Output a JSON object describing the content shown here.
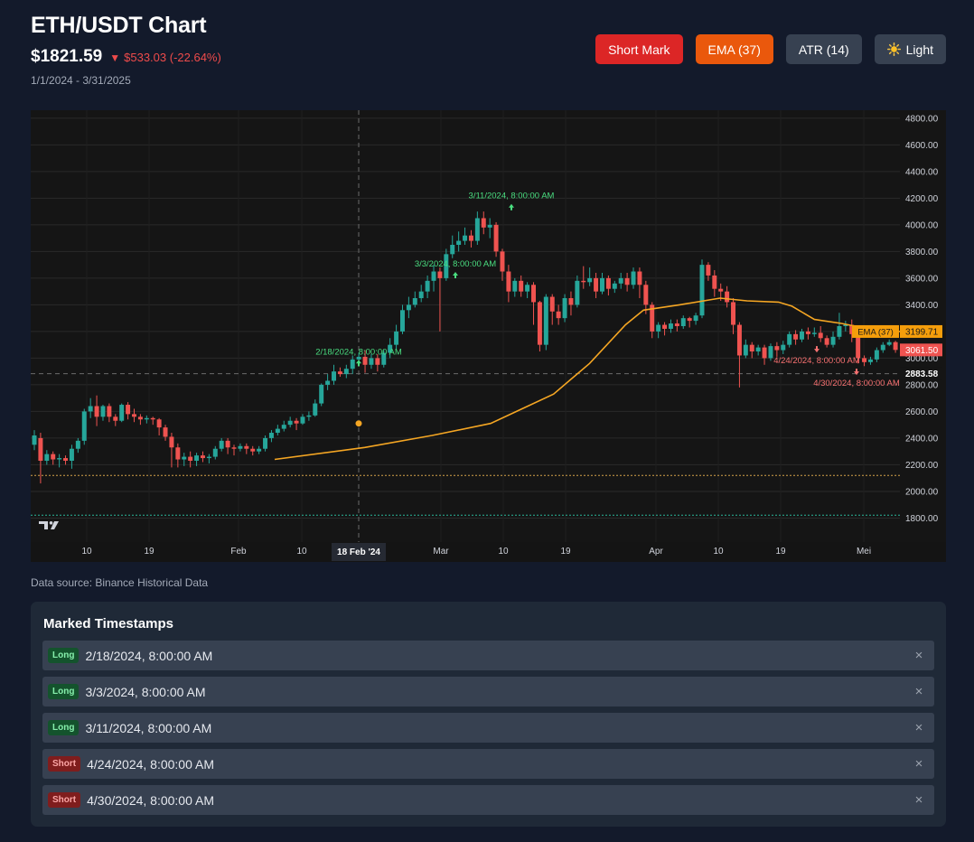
{
  "header": {
    "title": "ETH/USDT Chart",
    "price": "$1821.59",
    "change_arrow": "▼",
    "change": "$533.03 (-22.64%)",
    "date_range": "1/1/2024 - 3/31/2025"
  },
  "toolbar": {
    "short_mark_label": "Short Mark",
    "ema_label": "EMA (37)",
    "atr_label": "ATR (14)",
    "light_icon": "sun-icon",
    "light_label": "Light"
  },
  "colors": {
    "up": "#26a69a",
    "down": "#ef5350",
    "ema": "#f5a623",
    "background": "#131a2b"
  },
  "chart_data": {
    "type": "candlestick",
    "y_ticks": [
      "4800.00",
      "4600.00",
      "4400.00",
      "4200.00",
      "4000.00",
      "3800.00",
      "3600.00",
      "3400.00",
      "3200.00",
      "3000.00",
      "2800.00",
      "2600.00",
      "2400.00",
      "2200.00",
      "2000.00",
      "1800.00"
    ],
    "ylim": [
      1620,
      4860
    ],
    "x_ticks": [
      "10",
      "19",
      "Feb",
      "10",
      "Mar",
      "10",
      "19",
      "Apr",
      "10",
      "19",
      "Mei"
    ],
    "crosshair_label": "18 Feb '24",
    "crosshair_price": "2883.58",
    "ema_tag": "EMA (37)",
    "ema_value": "3199.71",
    "last_price": "3061.50",
    "ema_marker_value": 2510,
    "horizontal_lines": [
      {
        "value": 2883.58,
        "style": "dashed-gray"
      },
      {
        "value": 2120,
        "style": "dotted-orange"
      },
      {
        "value": 1821.59,
        "style": "dotted-green"
      }
    ],
    "marks": [
      {
        "type": "long",
        "label": "2/18/2024, 8:00:00 AM",
        "price": 2960
      },
      {
        "type": "long",
        "label": "3/3/2024, 8:00:00 AM",
        "price": 3620
      },
      {
        "type": "long",
        "label": "3/11/2024, 8:00:00 AM",
        "price": 4130
      },
      {
        "type": "short",
        "label": "4/24/2024, 8:00:00 AM",
        "price": 3070
      },
      {
        "type": "short",
        "label": "4/30/2024, 8:00:00 AM",
        "price": 2900
      }
    ],
    "ema": [
      {
        "day": 0,
        "v": 2240
      },
      {
        "day": 20,
        "v": 2330
      },
      {
        "day": 35,
        "v": 2420
      },
      {
        "day": 48,
        "v": 2510
      },
      {
        "day": 55,
        "v": 2620
      },
      {
        "day": 62,
        "v": 2730
      },
      {
        "day": 70,
        "v": 2960
      },
      {
        "day": 78,
        "v": 3250
      },
      {
        "day": 82,
        "v": 3360
      },
      {
        "day": 90,
        "v": 3400
      },
      {
        "day": 99,
        "v": 3450
      },
      {
        "day": 105,
        "v": 3430
      },
      {
        "day": 112,
        "v": 3420
      },
      {
        "day": 115,
        "v": 3390
      },
      {
        "day": 120,
        "v": 3290
      },
      {
        "day": 126,
        "v": 3260
      },
      {
        "day": 132,
        "v": 3220
      },
      {
        "day": 139,
        "v": 3199.71
      }
    ],
    "candles": [
      [
        2350,
        2420,
        2310,
        2460
      ],
      [
        2400,
        2230,
        2060,
        2440
      ],
      [
        2230,
        2280,
        2200,
        2310
      ],
      [
        2280,
        2240,
        2200,
        2300
      ],
      [
        2240,
        2250,
        2180,
        2280
      ],
      [
        2250,
        2230,
        2200,
        2270
      ],
      [
        2230,
        2320,
        2170,
        2350
      ],
      [
        2320,
        2380,
        2290,
        2400
      ],
      [
        2380,
        2600,
        2350,
        2620
      ],
      [
        2600,
        2640,
        2550,
        2700
      ],
      [
        2640,
        2560,
        2490,
        2720
      ],
      [
        2560,
        2640,
        2530,
        2650
      ],
      [
        2640,
        2560,
        2520,
        2660
      ],
      [
        2560,
        2530,
        2490,
        2580
      ],
      [
        2530,
        2650,
        2520,
        2660
      ],
      [
        2650,
        2580,
        2540,
        2670
      ],
      [
        2580,
        2560,
        2520,
        2620
      ],
      [
        2560,
        2540,
        2500,
        2580
      ],
      [
        2540,
        2550,
        2510,
        2570
      ],
      [
        2550,
        2540,
        2500,
        2560
      ],
      [
        2540,
        2480,
        2420,
        2550
      ],
      [
        2480,
        2410,
        2380,
        2500
      ],
      [
        2410,
        2330,
        2180,
        2440
      ],
      [
        2330,
        2240,
        2180,
        2360
      ],
      [
        2240,
        2260,
        2190,
        2290
      ],
      [
        2260,
        2230,
        2180,
        2300
      ],
      [
        2230,
        2270,
        2190,
        2290
      ],
      [
        2270,
        2250,
        2220,
        2300
      ],
      [
        2250,
        2260,
        2210,
        2280
      ],
      [
        2260,
        2320,
        2240,
        2340
      ],
      [
        2320,
        2380,
        2300,
        2400
      ],
      [
        2380,
        2330,
        2280,
        2400
      ],
      [
        2330,
        2320,
        2270,
        2350
      ],
      [
        2320,
        2340,
        2300,
        2360
      ],
      [
        2340,
        2320,
        2280,
        2360
      ],
      [
        2320,
        2300,
        2270,
        2340
      ],
      [
        2300,
        2320,
        2280,
        2340
      ],
      [
        2320,
        2400,
        2300,
        2420
      ],
      [
        2400,
        2440,
        2370,
        2460
      ],
      [
        2440,
        2470,
        2420,
        2500
      ],
      [
        2470,
        2500,
        2450,
        2530
      ],
      [
        2500,
        2530,
        2480,
        2560
      ],
      [
        2530,
        2510,
        2460,
        2550
      ],
      [
        2510,
        2560,
        2500,
        2580
      ],
      [
        2560,
        2570,
        2530,
        2600
      ],
      [
        2570,
        2660,
        2560,
        2690
      ],
      [
        2660,
        2800,
        2640,
        2810
      ],
      [
        2800,
        2830,
        2760,
        2880
      ],
      [
        2830,
        2900,
        2800,
        2950
      ],
      [
        2900,
        2880,
        2860,
        2930
      ],
      [
        2880,
        2920,
        2850,
        2950
      ],
      [
        2920,
        2990,
        2880,
        3020
      ],
      [
        2990,
        3010,
        2950,
        3040
      ],
      [
        3010,
        2950,
        2890,
        3060
      ],
      [
        2950,
        3000,
        2920,
        3030
      ],
      [
        3000,
        2950,
        2900,
        3030
      ],
      [
        2950,
        3040,
        2930,
        3060
      ],
      [
        3040,
        3100,
        3000,
        3150
      ],
      [
        3100,
        3200,
        3060,
        3250
      ],
      [
        3200,
        3360,
        3180,
        3400
      ],
      [
        3360,
        3400,
        3300,
        3460
      ],
      [
        3400,
        3450,
        3380,
        3500
      ],
      [
        3450,
        3500,
        3420,
        3550
      ],
      [
        3500,
        3580,
        3450,
        3620
      ],
      [
        3580,
        3650,
        3500,
        3700
      ],
      [
        3650,
        3600,
        3200,
        3680
      ],
      [
        3600,
        3780,
        3580,
        3820
      ],
      [
        3780,
        3850,
        3750,
        3920
      ],
      [
        3850,
        3880,
        3800,
        3950
      ],
      [
        3880,
        3920,
        3850,
        3980
      ],
      [
        3920,
        3880,
        3830,
        3960
      ],
      [
        3880,
        4050,
        3850,
        4100
      ],
      [
        4050,
        3980,
        3930,
        4100
      ],
      [
        3980,
        4000,
        3900,
        4050
      ],
      [
        4000,
        3800,
        3760,
        4020
      ],
      [
        3800,
        3650,
        3580,
        3820
      ],
      [
        3650,
        3500,
        3420,
        3700
      ],
      [
        3500,
        3580,
        3460,
        3600
      ],
      [
        3580,
        3500,
        3460,
        3620
      ],
      [
        3500,
        3550,
        3450,
        3570
      ],
      [
        3550,
        3420,
        3250,
        3570
      ],
      [
        3420,
        3100,
        3050,
        3430
      ],
      [
        3100,
        3460,
        3060,
        3480
      ],
      [
        3460,
        3350,
        3250,
        3480
      ],
      [
        3350,
        3300,
        3250,
        3400
      ],
      [
        3300,
        3450,
        3270,
        3480
      ],
      [
        3450,
        3400,
        3320,
        3500
      ],
      [
        3400,
        3580,
        3380,
        3620
      ],
      [
        3580,
        3570,
        3520,
        3690
      ],
      [
        3570,
        3600,
        3540,
        3680
      ],
      [
        3600,
        3500,
        3450,
        3640
      ],
      [
        3500,
        3600,
        3480,
        3640
      ],
      [
        3600,
        3520,
        3470,
        3620
      ],
      [
        3520,
        3560,
        3490,
        3580
      ],
      [
        3560,
        3600,
        3520,
        3640
      ],
      [
        3600,
        3550,
        3500,
        3640
      ],
      [
        3550,
        3650,
        3520,
        3680
      ],
      [
        3650,
        3550,
        3450,
        3680
      ],
      [
        3550,
        3400,
        3330,
        3580
      ],
      [
        3400,
        3200,
        3150,
        3420
      ],
      [
        3200,
        3250,
        3150,
        3270
      ],
      [
        3250,
        3220,
        3170,
        3270
      ],
      [
        3220,
        3260,
        3190,
        3290
      ],
      [
        3260,
        3240,
        3200,
        3290
      ],
      [
        3240,
        3300,
        3220,
        3320
      ],
      [
        3300,
        3280,
        3230,
        3310
      ],
      [
        3280,
        3320,
        3250,
        3340
      ],
      [
        3320,
        3700,
        3300,
        3740
      ],
      [
        3700,
        3620,
        3580,
        3720
      ],
      [
        3620,
        3520,
        3460,
        3660
      ],
      [
        3520,
        3500,
        3430,
        3560
      ],
      [
        3500,
        3420,
        3380,
        3540
      ],
      [
        3420,
        3250,
        3180,
        3450
      ],
      [
        3250,
        3020,
        2780,
        3270
      ],
      [
        3020,
        3100,
        3000,
        3140
      ],
      [
        3100,
        3050,
        3000,
        3120
      ],
      [
        3050,
        3080,
        3020,
        3100
      ],
      [
        3080,
        3000,
        2950,
        3100
      ],
      [
        3000,
        3090,
        2980,
        3110
      ],
      [
        3090,
        3060,
        3010,
        3120
      ],
      [
        3060,
        3100,
        3030,
        3130
      ],
      [
        3100,
        3180,
        3080,
        3200
      ],
      [
        3180,
        3140,
        3100,
        3210
      ],
      [
        3140,
        3200,
        3120,
        3220
      ],
      [
        3200,
        3180,
        3140,
        3230
      ],
      [
        3180,
        3190,
        3160,
        3230
      ],
      [
        3190,
        3150,
        3120,
        3240
      ],
      [
        3150,
        3100,
        3080,
        3170
      ],
      [
        3100,
        3160,
        3080,
        3200
      ],
      [
        3160,
        3240,
        3140,
        3340
      ],
      [
        3240,
        3250,
        3200,
        3280
      ],
      [
        3250,
        3180,
        3120,
        3290
      ],
      [
        3180,
        3000,
        2960,
        3200
      ],
      [
        3000,
        2970,
        2940,
        3020
      ],
      [
        2970,
        2990,
        2950,
        3010
      ],
      [
        2990,
        3060,
        2970,
        3080
      ],
      [
        3060,
        3100,
        3040,
        3120
      ],
      [
        3100,
        3120,
        3090,
        3140
      ],
      [
        3120,
        3061.5,
        3040,
        3130
      ]
    ]
  },
  "datasource": "Data source: Binance Historical Data",
  "marks_panel": {
    "title": "Marked Timestamps",
    "items": [
      {
        "badge": "Long",
        "time": "2/18/2024, 8:00:00 AM"
      },
      {
        "badge": "Long",
        "time": "3/3/2024, 8:00:00 AM"
      },
      {
        "badge": "Long",
        "time": "3/11/2024, 8:00:00 AM"
      },
      {
        "badge": "Short",
        "time": "4/24/2024, 8:00:00 AM"
      },
      {
        "badge": "Short",
        "time": "4/30/2024, 8:00:00 AM"
      }
    ],
    "remove_glyph": "×"
  }
}
